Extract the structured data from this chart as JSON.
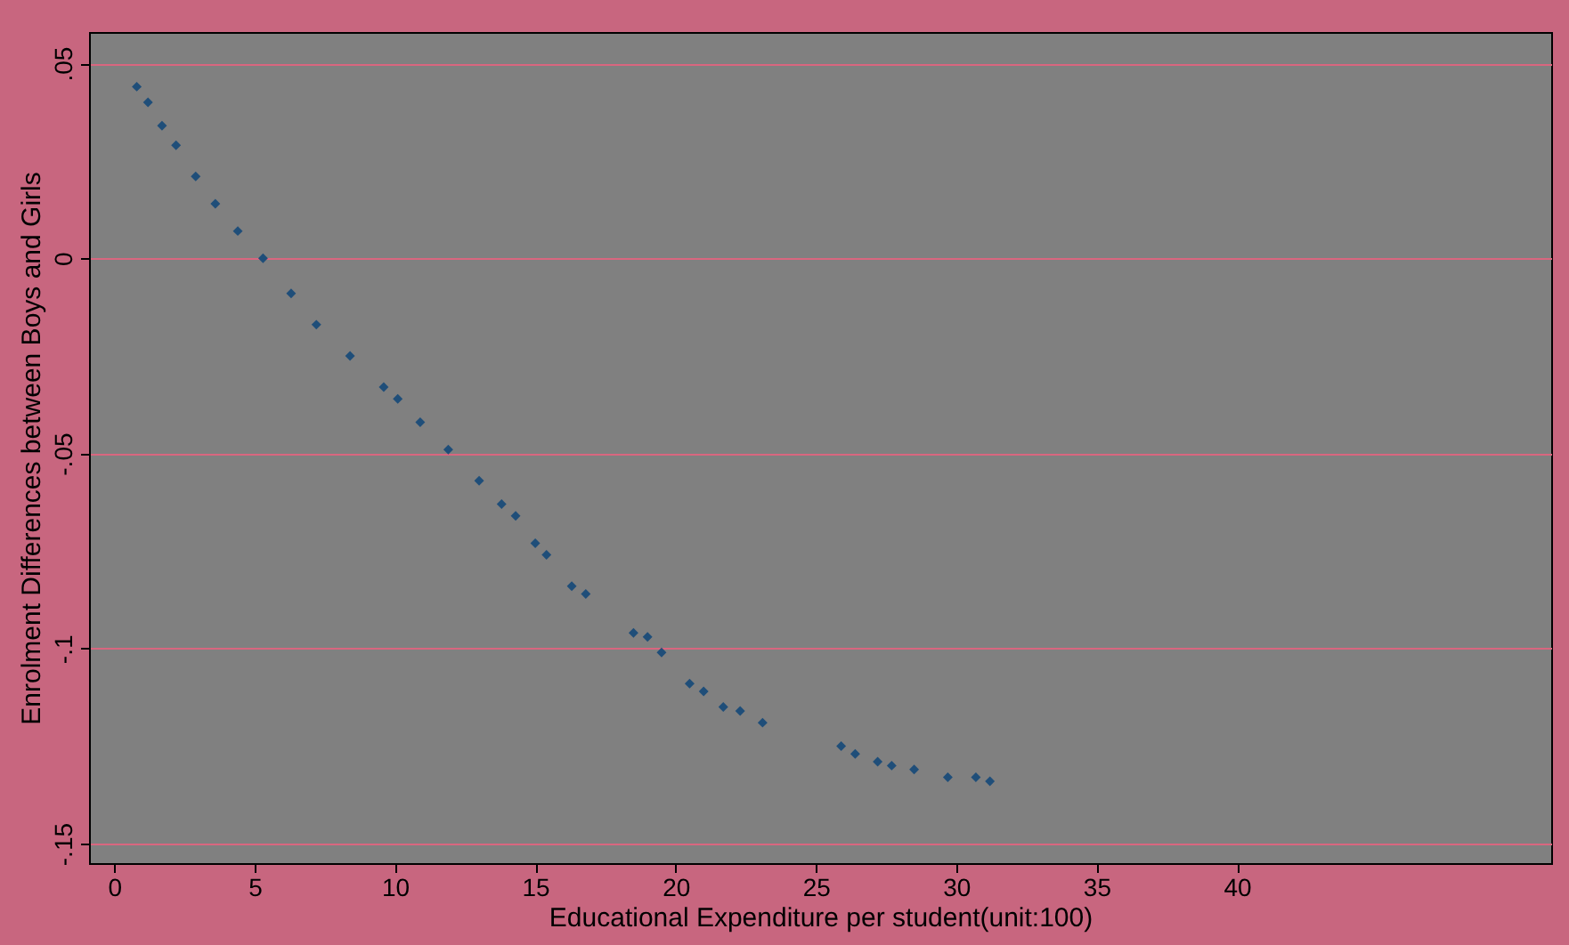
{
  "chart_data": {
    "type": "scatter",
    "xlabel": "Educational Expenditure per student(unit:100)",
    "ylabel": "Enrolment Differences between Boys and Girls",
    "x": [
      0.8,
      1.2,
      1.7,
      2.2,
      2.9,
      3.6,
      4.4,
      5.3,
      6.3,
      7.2,
      8.4,
      9.6,
      10.1,
      10.9,
      11.9,
      13.0,
      13.8,
      14.3,
      15.0,
      15.4,
      16.3,
      16.8,
      18.5,
      19.0,
      19.5,
      20.5,
      21.0,
      21.7,
      22.3,
      23.1,
      25.9,
      26.4,
      27.2,
      27.7,
      28.5,
      29.7,
      30.7,
      31.2
    ],
    "series": [
      {
        "color": "#1f4e79",
        "values": [
          0.044,
          0.04,
          0.034,
          0.029,
          0.021,
          0.014,
          0.007,
          0.0,
          -0.009,
          -0.017,
          -0.025,
          -0.033,
          -0.036,
          -0.042,
          -0.049,
          -0.057,
          -0.063,
          -0.066,
          -0.073,
          -0.076,
          -0.084,
          -0.086,
          -0.096,
          -0.097,
          -0.101,
          -0.109,
          -0.111,
          -0.115,
          -0.116,
          -0.119,
          -0.125,
          -0.127,
          -0.129,
          -0.13,
          -0.131,
          -0.133,
          -0.133,
          -0.134
        ]
      }
    ],
    "xlim": [
      -0.9,
      51.2
    ],
    "xticks": [
      0,
      5,
      10,
      15,
      20,
      25,
      30,
      35,
      40
    ],
    "ylim": [
      -0.155,
      0.058
    ],
    "yticks": [
      {
        "value": 0.05,
        "label": ".05"
      },
      0,
      {
        "value": -0.05,
        "label": "-.05"
      },
      {
        "value": -0.1,
        "label": "-.1"
      },
      {
        "value": -0.15,
        "label": "-.15"
      }
    ],
    "grid": "y",
    "marker": "diamond",
    "legend": false
  }
}
